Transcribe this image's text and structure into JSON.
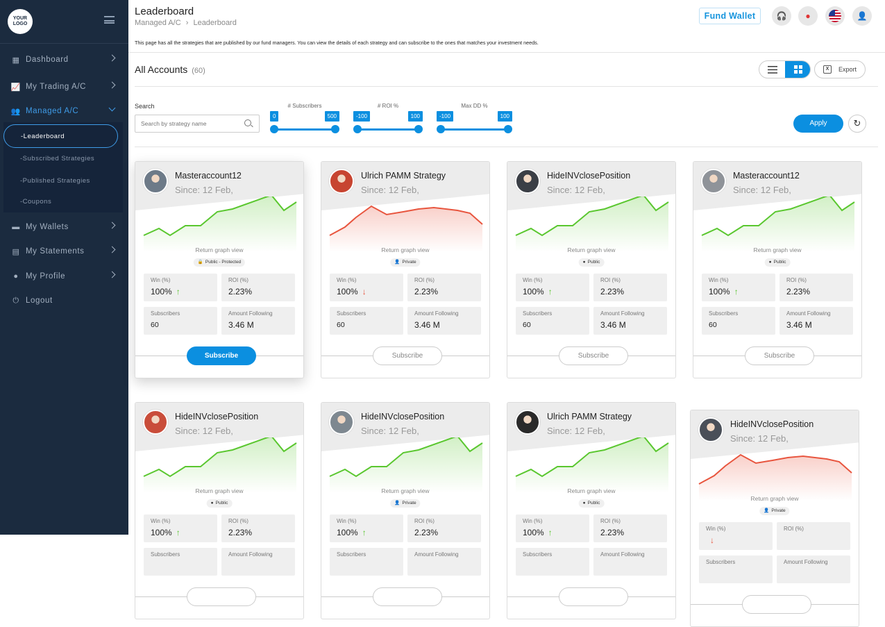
{
  "logo": {
    "line1": "YOUR",
    "line2": "LOGO"
  },
  "sidebar": {
    "items": [
      {
        "label": "Dashboard",
        "icon": "dashboard-icon"
      },
      {
        "label": "My Trading A/C",
        "icon": "chart-line-icon"
      },
      {
        "label": "Managed A/C",
        "icon": "users-icon"
      },
      {
        "label": "My Wallets",
        "icon": "wallet-icon"
      },
      {
        "label": "My Statements",
        "icon": "document-icon"
      },
      {
        "label": "My Profile",
        "icon": "user-circle-icon"
      },
      {
        "label": "Logout",
        "icon": "power-icon"
      }
    ],
    "sub_items": [
      {
        "label": "-Leaderboard"
      },
      {
        "label": "-Subscribed Strategies"
      },
      {
        "label": "-Published Strategies"
      },
      {
        "label": "-Coupons"
      }
    ]
  },
  "header": {
    "title": "Leaderboard",
    "breadcrumb_parent": "Managed A/C",
    "breadcrumb_sep": "›",
    "breadcrumb_current": "Leaderboard",
    "fund_wallet": "Fund Wallet"
  },
  "description": "This page has all the strategies that are published by our fund managers. You can view the details of each strategy and can subscribe to the ones that matches your investment needs.",
  "accounts": {
    "title": "All Accounts",
    "count": "(60)"
  },
  "export_label": "Export",
  "filters": {
    "search_label": "Search",
    "search_placeholder": "Search by strategy name",
    "subscribers": {
      "label": "# Subscribers",
      "min": "0",
      "max": "500"
    },
    "roi": {
      "label": "# ROI %",
      "min": "-100",
      "max": "100"
    },
    "maxdd": {
      "label": "Max DD %",
      "min": "-100",
      "max": "100"
    },
    "apply": "Apply"
  },
  "colors": {
    "accent": "#0b8fe0",
    "up": "#5ac72f",
    "down": "#e8553e",
    "sidebar": "#1b2b3f"
  },
  "stat_labels": {
    "win": "Win (%)",
    "roi": "ROI (%)",
    "subs": "Subscribers",
    "amount": "Amount Following"
  },
  "graph_label": "Return graph view",
  "cards": [
    {
      "name": "Masteraccount12",
      "since": "Since: 12 Feb,",
      "badge": "Public - Protected",
      "badge_icon": "lock-icon",
      "win": "100%",
      "trend": "up",
      "roi": "2.23%",
      "subscribers": "60",
      "amount": "3.46 M",
      "subscribe": "Subscribe",
      "primary": true
    },
    {
      "name": "Ulrich PAMM Strategy",
      "since": "Since: 12 Feb,",
      "badge": "Private",
      "badge_icon": "user-lock-icon",
      "win": "100%",
      "trend": "down",
      "roi": "2.23%",
      "subscribers": "60",
      "amount": "3.46 M",
      "subscribe": "Subscribe",
      "primary": false
    },
    {
      "name": "HideINVclosePosition",
      "since": "Since: 12 Feb,",
      "badge": "Public",
      "badge_icon": "globe-icon",
      "win": "100%",
      "trend": "up",
      "roi": "2.23%",
      "subscribers": "60",
      "amount": "3.46 M",
      "subscribe": "Subscribe",
      "primary": false
    },
    {
      "name": "Masteraccount12",
      "since": "Since: 12 Feb,",
      "badge": "Public",
      "badge_icon": "globe-icon",
      "win": "100%",
      "trend": "up",
      "roi": "2.23%",
      "subscribers": "60",
      "amount": "3.46 M",
      "subscribe": "Subscribe",
      "primary": false
    },
    {
      "name": "HideINVclosePosition",
      "since": "Since: 12 Feb,",
      "badge": "Public",
      "badge_icon": "globe-icon",
      "win": "100%",
      "trend": "up",
      "roi": "2.23%",
      "subscribers": "",
      "amount": "",
      "subscribe": "",
      "primary": false
    },
    {
      "name": "HideINVclosePosition",
      "since": "Since: 12 Feb,",
      "badge": "Private",
      "badge_icon": "user-lock-icon",
      "win": "100%",
      "trend": "up",
      "roi": "2.23%",
      "subscribers": "",
      "amount": "",
      "subscribe": "",
      "primary": false
    },
    {
      "name": "Ulrich PAMM Strategy",
      "since": "Since: 12 Feb,",
      "badge": "Public",
      "badge_icon": "globe-icon",
      "win": "100%",
      "trend": "up",
      "roi": "2.23%",
      "subscribers": "",
      "amount": "",
      "subscribe": "",
      "primary": false
    },
    {
      "name": "HideINVclosePosition",
      "since": "Since: 12 Feb,",
      "badge": "Private",
      "badge_icon": "user-lock-icon",
      "win": "",
      "trend": "down",
      "roi": "",
      "subscribers": "",
      "amount": "",
      "subscribe": "",
      "primary": false
    }
  ]
}
